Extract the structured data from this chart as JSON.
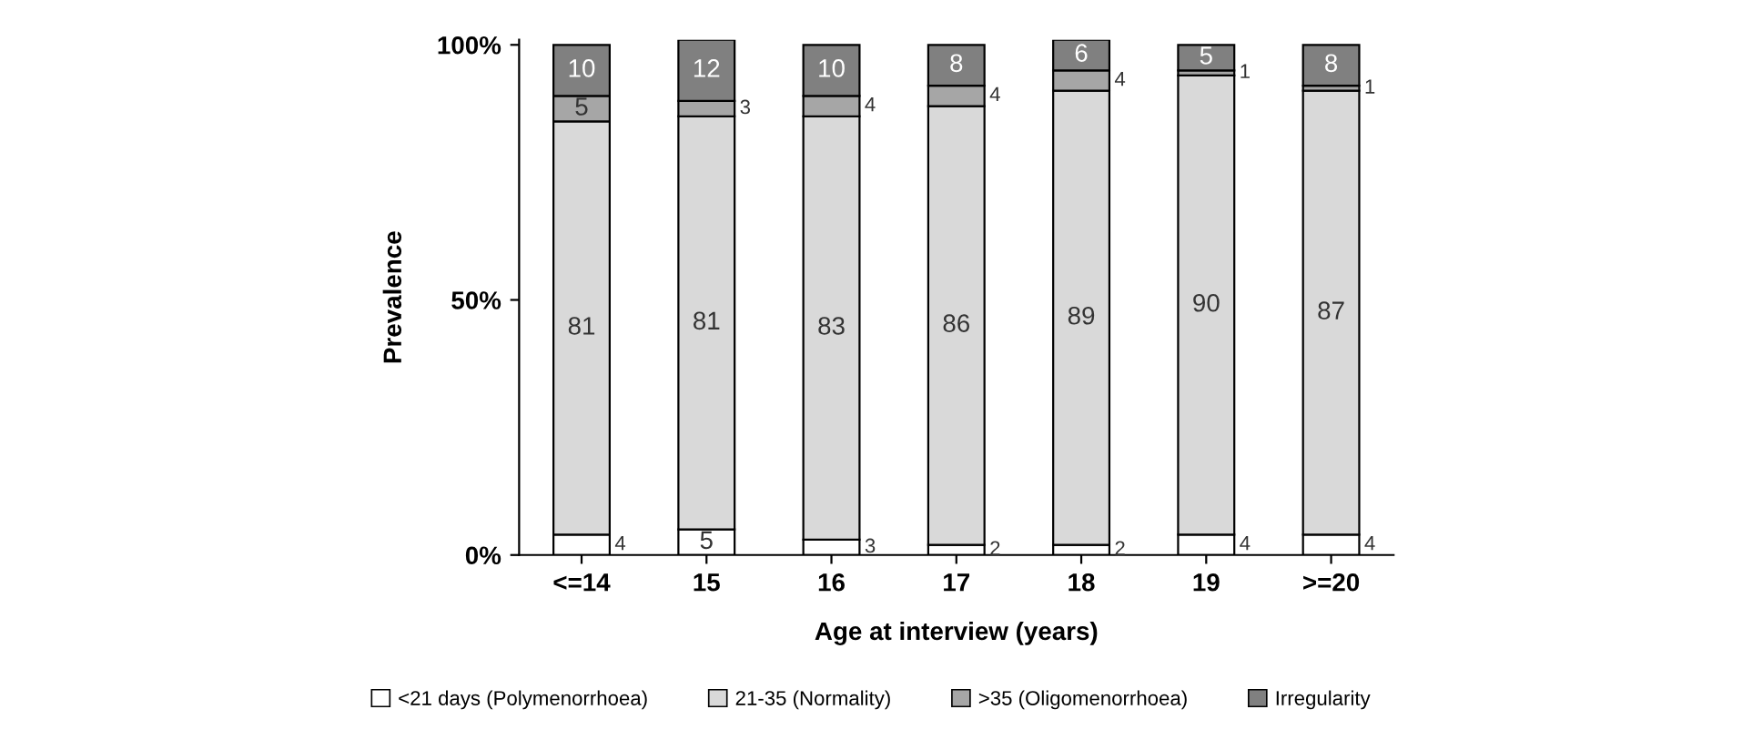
{
  "chart_data": {
    "type": "bar",
    "stacked": true,
    "xlabel": "Age at interview (years)",
    "ylabel": "Prevalence",
    "categories": [
      "<=14",
      "15",
      "16",
      "17",
      "18",
      "19",
      ">=20"
    ],
    "series": [
      {
        "name": "<21 days (Polymenorrhoea)",
        "color": "#ffffff",
        "values": [
          4,
          5,
          3,
          2,
          2,
          4,
          4
        ]
      },
      {
        "name": "21-35 (Normality)",
        "color": "#d9d9d9",
        "values": [
          81,
          81,
          83,
          86,
          89,
          90,
          87
        ]
      },
      {
        "name": ">35 (Oligomenorrhoea)",
        "color": "#a6a6a6",
        "values": [
          5,
          3,
          4,
          4,
          4,
          1,
          1
        ]
      },
      {
        "name": "Irregularity",
        "color": "#808080",
        "values": [
          10,
          12,
          10,
          8,
          6,
          5,
          8
        ]
      }
    ],
    "ylim": [
      0,
      101
    ],
    "yticks": [
      {
        "value": 0,
        "label": "0%"
      },
      {
        "value": 50,
        "label": "50%"
      },
      {
        "value": 100,
        "label": "100%"
      }
    ],
    "data_labels": true,
    "grid": false,
    "legend": "bottom"
  }
}
